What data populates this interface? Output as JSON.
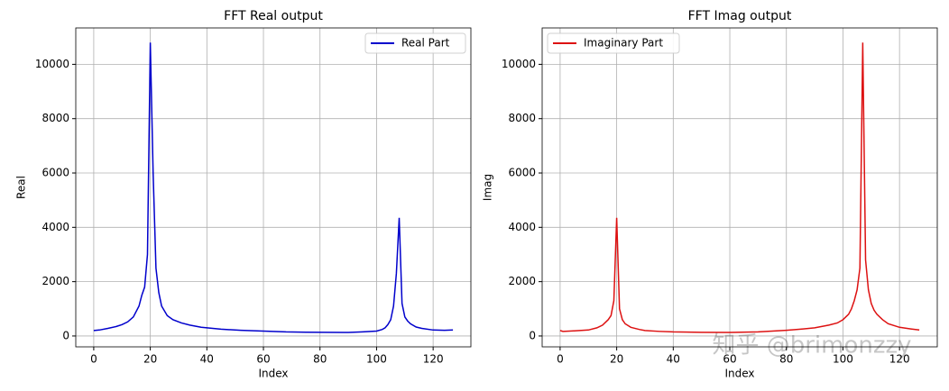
{
  "chart_data": [
    {
      "type": "line",
      "title": "FFT Real output",
      "xlabel": "Index",
      "ylabel": "Real",
      "x": [
        0,
        2,
        5,
        8,
        10,
        12,
        14,
        16,
        17,
        18,
        19,
        20,
        21,
        22,
        23,
        24,
        26,
        28,
        31,
        34,
        38,
        45,
        52,
        60,
        68,
        75,
        82,
        90,
        95,
        100,
        102,
        103,
        104,
        105,
        106,
        107,
        108,
        109,
        110,
        111,
        112,
        114,
        116,
        120,
        124,
        127
      ],
      "series": [
        {
          "name": "Real Part",
          "color": "#0000cc",
          "values": [
            200,
            220,
            280,
            350,
            420,
            520,
            700,
            1100,
            1500,
            1800,
            3000,
            10800,
            6000,
            2500,
            1600,
            1100,
            750,
            600,
            480,
            400,
            320,
            250,
            210,
            180,
            150,
            140,
            135,
            130,
            150,
            180,
            240,
            300,
            420,
            600,
            1100,
            2300,
            4350,
            1200,
            700,
            550,
            450,
            330,
            280,
            220,
            210,
            220
          ]
        }
      ],
      "xlim": [
        -6.35,
        133.35
      ],
      "ylim": [
        -400,
        11340
      ],
      "xticks": [
        0,
        20,
        40,
        60,
        80,
        100,
        120
      ],
      "yticks": [
        0,
        2000,
        4000,
        6000,
        8000,
        10000
      ],
      "grid": true,
      "legend": "upper right"
    },
    {
      "type": "line",
      "title": "FFT Imag output",
      "xlabel": "Index",
      "ylabel": "Imag",
      "x": [
        0,
        1,
        5,
        10,
        13,
        15,
        17,
        18,
        19,
        20,
        21,
        22,
        23,
        25,
        28,
        30,
        35,
        40,
        50,
        60,
        70,
        75,
        80,
        85,
        90,
        95,
        98,
        100,
        102,
        103,
        104,
        105,
        106,
        107,
        108,
        109,
        110,
        111,
        112,
        114,
        116,
        120,
        124,
        127
      ],
      "series": [
        {
          "name": "Imaginary Part",
          "color": "#dd1111",
          "values": [
            200,
            170,
            190,
            220,
            300,
            400,
            600,
            750,
            1300,
            4350,
            1000,
            600,
            450,
            320,
            240,
            200,
            170,
            150,
            135,
            130,
            150,
            180,
            210,
            250,
            300,
            400,
            480,
            600,
            800,
            1000,
            1300,
            1700,
            2500,
            10800,
            2800,
            1700,
            1200,
            950,
            800,
            600,
            450,
            320,
            260,
            220
          ]
        }
      ],
      "xlim": [
        -6.35,
        133.35
      ],
      "ylim": [
        -400,
        11340
      ],
      "xticks": [
        0,
        20,
        40,
        60,
        80,
        100,
        120
      ],
      "yticks": [
        0,
        2000,
        4000,
        6000,
        8000,
        10000
      ],
      "grid": true,
      "legend": "upper left"
    }
  ],
  "watermark": "知乎 @brimonzzy"
}
